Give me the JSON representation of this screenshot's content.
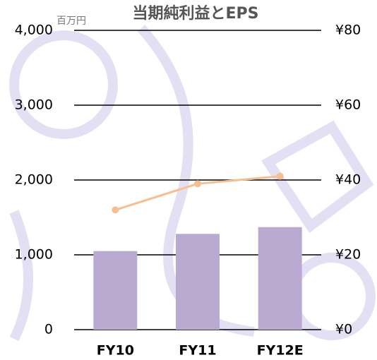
{
  "chart_data": {
    "type": "bar",
    "title": "当期純利益とEPS",
    "unit_label": "百万円",
    "categories": [
      "FY10",
      "FY11",
      "FY12E"
    ],
    "series": [
      {
        "color": "#baa9d0",
        "values": [
          1050,
          1280,
          1370
        ]
      },
      {
        "type": "line",
        "axis": "y2",
        "color": "#f6bf90",
        "values": [
          32,
          39,
          41
        ]
      }
    ],
    "ylim": [
      0,
      4000
    ],
    "yticks": [
      0,
      {
        "value": 1000,
        "label": "1,000"
      },
      {
        "value": 2000,
        "label": "2,000"
      },
      {
        "value": 3000,
        "label": "3,000"
      },
      {
        "value": 4000,
        "label": "4,000"
      }
    ],
    "y2lim": [
      0,
      80
    ],
    "y2ticks": [
      {
        "value": 0,
        "label": "¥0"
      },
      {
        "value": 20,
        "label": "¥20"
      },
      {
        "value": 40,
        "label": "¥40"
      },
      {
        "value": 60,
        "label": "¥60"
      },
      {
        "value": 80,
        "label": "¥80"
      }
    ],
    "grid": true
  }
}
